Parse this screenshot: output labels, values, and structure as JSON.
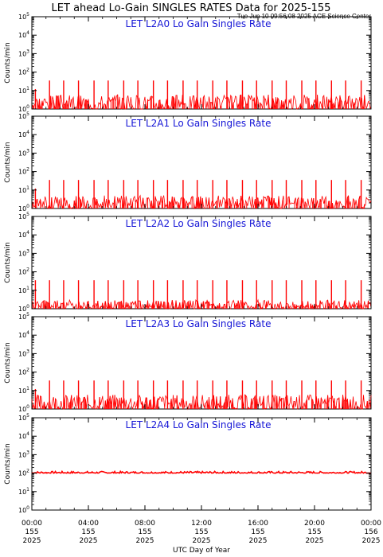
{
  "header": {
    "title": "LET ahead Lo-Gain SINGLES RATES Data for 2025-155",
    "timestamp": "Tue Jun 10 09:56:08 2025 ACE Science Center"
  },
  "colors": {
    "data": "#ff0000",
    "panel_title": "#1515d6",
    "axes": "#000000"
  },
  "chart_data": [
    {
      "type": "line",
      "title": "LET L2A0 Lo Gain Singles Rate",
      "ylabel": "Counts/min",
      "yscale": "log",
      "ylim": [
        1,
        100000
      ],
      "xlim": [
        0,
        24
      ],
      "baseline_value": 2,
      "baseline_variation": [
        1,
        6
      ],
      "spikes": [
        {
          "x": 0.25,
          "y": 12
        },
        {
          "x": 1.25,
          "y": 35
        },
        {
          "x": 2.25,
          "y": 35
        },
        {
          "x": 3.3,
          "y": 35
        },
        {
          "x": 4.4,
          "y": 35
        },
        {
          "x": 5.4,
          "y": 35
        },
        {
          "x": 6.5,
          "y": 35
        },
        {
          "x": 7.5,
          "y": 35
        },
        {
          "x": 8.6,
          "y": 35
        },
        {
          "x": 9.6,
          "y": 35
        },
        {
          "x": 10.7,
          "y": 35
        },
        {
          "x": 11.7,
          "y": 35
        },
        {
          "x": 12.8,
          "y": 35
        },
        {
          "x": 13.8,
          "y": 35
        },
        {
          "x": 14.9,
          "y": 35
        },
        {
          "x": 15.9,
          "y": 35
        },
        {
          "x": 17.0,
          "y": 35
        },
        {
          "x": 18.0,
          "y": 35
        },
        {
          "x": 19.1,
          "y": 35
        },
        {
          "x": 20.1,
          "y": 35
        },
        {
          "x": 21.2,
          "y": 35
        },
        {
          "x": 22.2,
          "y": 35
        },
        {
          "x": 23.3,
          "y": 35
        }
      ]
    },
    {
      "type": "line",
      "title": "LET L2A1 Lo Gain Singles Rate",
      "ylabel": "Counts/min",
      "yscale": "log",
      "ylim": [
        1,
        100000
      ],
      "xlim": [
        0,
        24
      ],
      "baseline_value": 2,
      "baseline_variation": [
        1,
        5
      ],
      "spikes": [
        {
          "x": 0.25,
          "y": 12
        },
        {
          "x": 1.25,
          "y": 35
        },
        {
          "x": 2.25,
          "y": 35
        },
        {
          "x": 3.3,
          "y": 35
        },
        {
          "x": 4.4,
          "y": 35
        },
        {
          "x": 5.4,
          "y": 35
        },
        {
          "x": 6.5,
          "y": 35
        },
        {
          "x": 7.5,
          "y": 35
        },
        {
          "x": 8.6,
          "y": 35
        },
        {
          "x": 9.6,
          "y": 35
        },
        {
          "x": 10.7,
          "y": 35
        },
        {
          "x": 11.7,
          "y": 35
        },
        {
          "x": 12.8,
          "y": 35
        },
        {
          "x": 13.8,
          "y": 35
        },
        {
          "x": 14.9,
          "y": 35
        },
        {
          "x": 15.9,
          "y": 35
        },
        {
          "x": 17.0,
          "y": 35
        },
        {
          "x": 18.0,
          "y": 35
        },
        {
          "x": 19.1,
          "y": 35
        },
        {
          "x": 20.1,
          "y": 35
        },
        {
          "x": 21.2,
          "y": 35
        },
        {
          "x": 22.2,
          "y": 35
        },
        {
          "x": 23.3,
          "y": 35
        }
      ]
    },
    {
      "type": "line",
      "title": "LET L2A2 Lo Gain Singles Rate",
      "ylabel": "Counts/min",
      "yscale": "log",
      "ylim": [
        1,
        100000
      ],
      "xlim": [
        0,
        24
      ],
      "baseline_value": 1,
      "baseline_variation": [
        1,
        3
      ],
      "spikes": [
        {
          "x": 0.25,
          "y": 35
        },
        {
          "x": 1.25,
          "y": 35
        },
        {
          "x": 2.25,
          "y": 35
        },
        {
          "x": 3.3,
          "y": 35
        },
        {
          "x": 4.4,
          "y": 35
        },
        {
          "x": 5.4,
          "y": 35
        },
        {
          "x": 6.5,
          "y": 35
        },
        {
          "x": 7.5,
          "y": 35
        },
        {
          "x": 8.6,
          "y": 35
        },
        {
          "x": 9.6,
          "y": 35
        },
        {
          "x": 10.7,
          "y": 35
        },
        {
          "x": 11.7,
          "y": 35
        },
        {
          "x": 12.8,
          "y": 35
        },
        {
          "x": 13.8,
          "y": 35
        },
        {
          "x": 14.9,
          "y": 35
        },
        {
          "x": 15.9,
          "y": 35
        },
        {
          "x": 17.0,
          "y": 35
        },
        {
          "x": 18.0,
          "y": 35
        },
        {
          "x": 19.1,
          "y": 35
        },
        {
          "x": 20.1,
          "y": 35
        },
        {
          "x": 21.2,
          "y": 35
        },
        {
          "x": 22.2,
          "y": 35
        },
        {
          "x": 23.3,
          "y": 35
        }
      ]
    },
    {
      "type": "line",
      "title": "LET L2A3 Lo Gain Singles Rate",
      "ylabel": "Counts/min",
      "yscale": "log",
      "ylim": [
        1,
        100000
      ],
      "xlim": [
        0,
        24
      ],
      "baseline_value": 2,
      "baseline_variation": [
        1,
        6
      ],
      "spikes": [
        {
          "x": 0.25,
          "y": 12
        },
        {
          "x": 1.25,
          "y": 35
        },
        {
          "x": 2.25,
          "y": 35
        },
        {
          "x": 3.3,
          "y": 35
        },
        {
          "x": 4.4,
          "y": 35
        },
        {
          "x": 5.4,
          "y": 35
        },
        {
          "x": 6.5,
          "y": 35
        },
        {
          "x": 7.5,
          "y": 35
        },
        {
          "x": 8.6,
          "y": 35
        },
        {
          "x": 9.6,
          "y": 35
        },
        {
          "x": 10.7,
          "y": 35
        },
        {
          "x": 11.7,
          "y": 35
        },
        {
          "x": 12.8,
          "y": 35
        },
        {
          "x": 13.8,
          "y": 35
        },
        {
          "x": 14.9,
          "y": 35
        },
        {
          "x": 15.9,
          "y": 35
        },
        {
          "x": 17.0,
          "y": 35
        },
        {
          "x": 18.0,
          "y": 35
        },
        {
          "x": 19.1,
          "y": 35
        },
        {
          "x": 20.1,
          "y": 35
        },
        {
          "x": 21.2,
          "y": 35
        },
        {
          "x": 22.2,
          "y": 35
        },
        {
          "x": 23.3,
          "y": 35
        }
      ]
    },
    {
      "type": "line",
      "title": "LET L2A4 Lo Gain Singles Rate",
      "ylabel": "Counts/min",
      "yscale": "log",
      "ylim": [
        1,
        100000
      ],
      "xlim": [
        0,
        24
      ],
      "baseline_value": 110,
      "baseline_variation": [
        100,
        125
      ],
      "spikes": []
    }
  ],
  "y_ticks": [
    {
      "base": "10",
      "exp": "0"
    },
    {
      "base": "10",
      "exp": "1"
    },
    {
      "base": "10",
      "exp": "2"
    },
    {
      "base": "10",
      "exp": "3"
    },
    {
      "base": "10",
      "exp": "4"
    },
    {
      "base": "10",
      "exp": "5"
    }
  ],
  "x_axis": {
    "label": "UTC Day of Year",
    "ticks": [
      {
        "value": 0,
        "time": "00:00",
        "doy": "155",
        "year": "2025"
      },
      {
        "value": 4,
        "time": "04:00",
        "doy": "155",
        "year": "2025"
      },
      {
        "value": 8,
        "time": "08:00",
        "doy": "155",
        "year": "2025"
      },
      {
        "value": 12,
        "time": "12:00",
        "doy": "155",
        "year": "2025"
      },
      {
        "value": 16,
        "time": "16:00",
        "doy": "155",
        "year": "2025"
      },
      {
        "value": 20,
        "time": "20:00",
        "doy": "155",
        "year": "2025"
      },
      {
        "value": 24,
        "time": "00:00",
        "doy": "156",
        "year": "2025"
      }
    ]
  }
}
